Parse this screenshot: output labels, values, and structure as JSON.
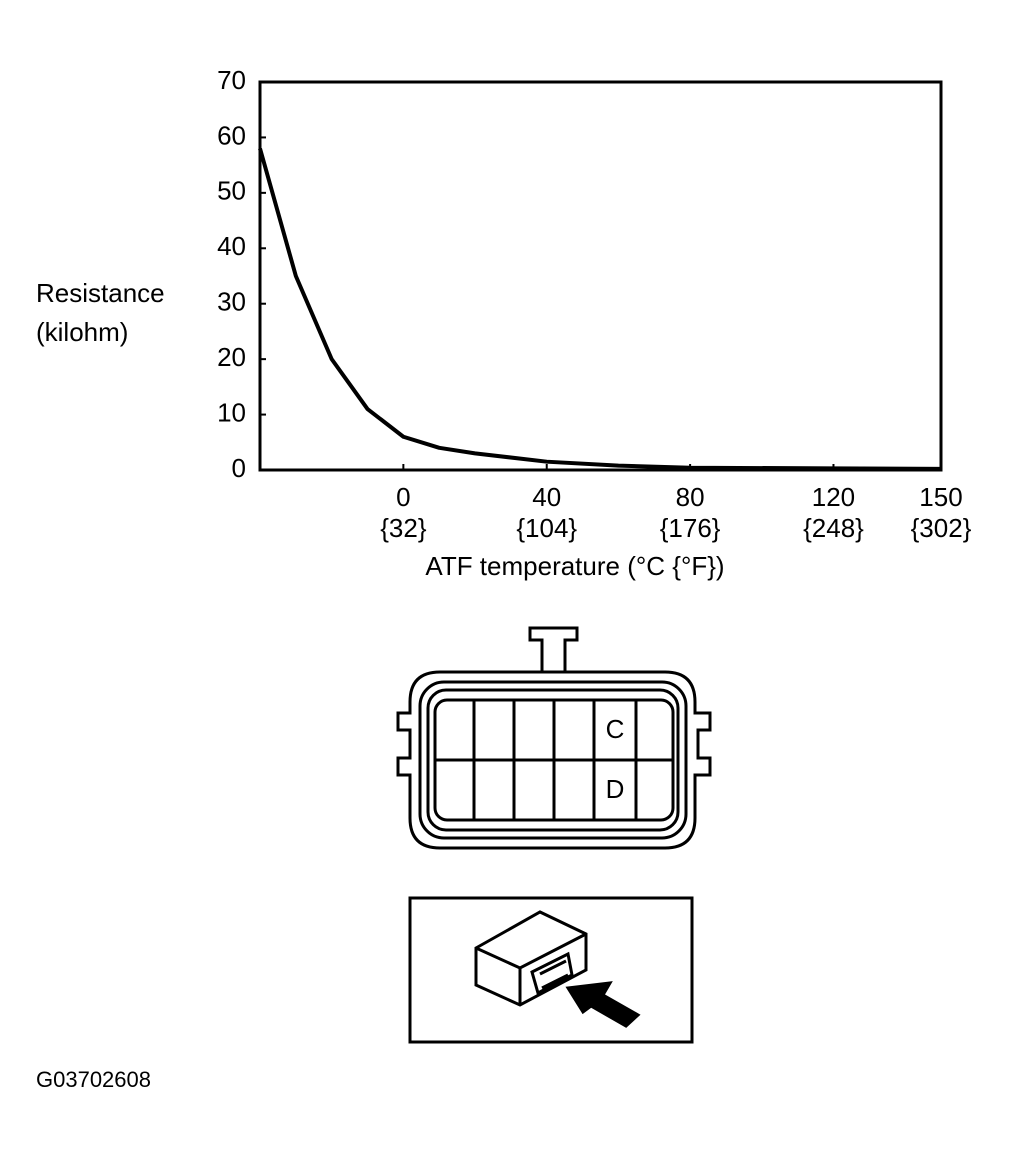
{
  "chart_data": {
    "type": "line",
    "ylabel": [
      "Resistance",
      "(kilohm)"
    ],
    "xlabel": "ATF temperature (°C {°F})",
    "x": [
      -40,
      -30,
      -20,
      -10,
      0,
      10,
      20,
      40,
      60,
      80,
      120,
      150
    ],
    "series": [
      {
        "name": "Resistance",
        "color": "#000000",
        "values": [
          58,
          35,
          20,
          11,
          6,
          4,
          3,
          1.5,
          0.8,
          0.4,
          0.3,
          0.2
        ]
      }
    ],
    "xlim": [
      -40,
      150
    ],
    "xticks": [
      0,
      40,
      80,
      120,
      150
    ],
    "xtick_sublabels": [
      "{32}",
      "{104}",
      "{176}",
      "{248}",
      "{302}"
    ],
    "ylim": [
      0,
      70
    ],
    "yticks": [
      0,
      10,
      20,
      30,
      40,
      50,
      60,
      70
    ],
    "grid": false
  },
  "connector": {
    "pins": [
      "C",
      "D"
    ]
  },
  "figure_id": "G03702608"
}
